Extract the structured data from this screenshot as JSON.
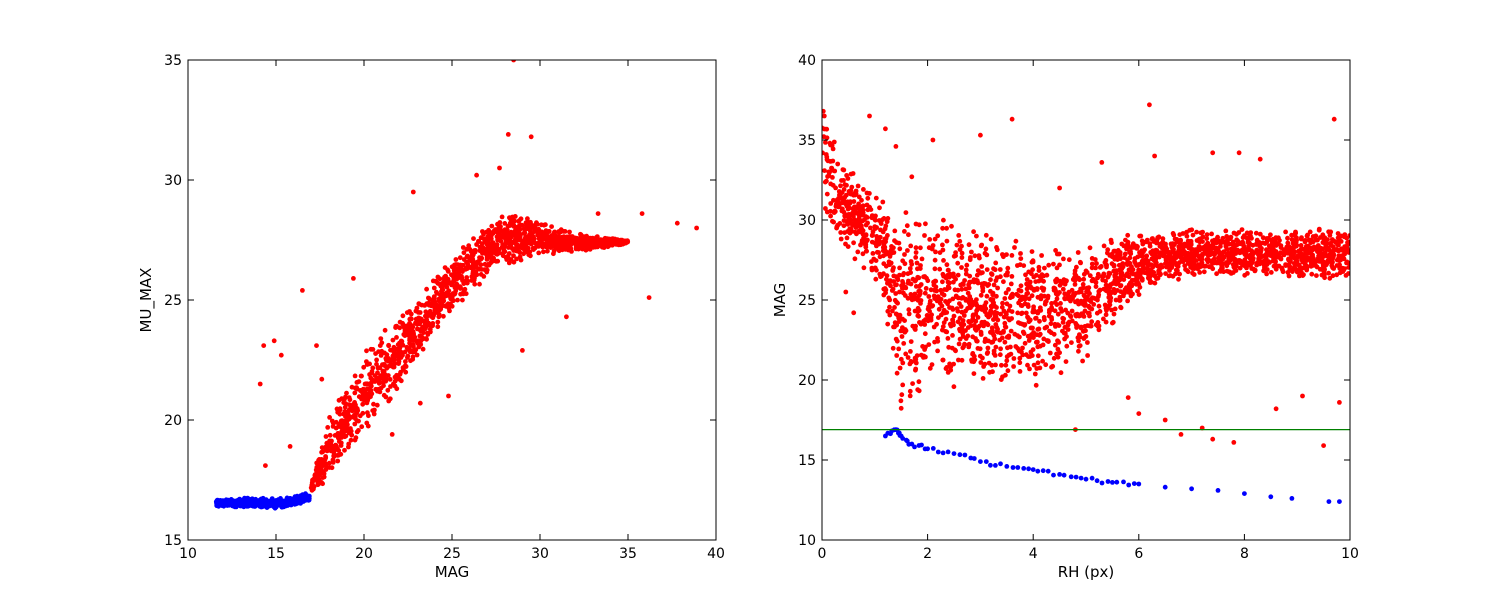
{
  "chart_data": [
    {
      "type": "scatter",
      "xlabel": "MAG",
      "ylabel": "MU_MAX",
      "xlim": [
        10,
        40
      ],
      "ylim": [
        15,
        35
      ],
      "xticks": [
        "10",
        "15",
        "20",
        "25",
        "30",
        "35",
        "40"
      ],
      "yticks": [
        "15",
        "20",
        "25",
        "30",
        "35"
      ],
      "series": [
        {
          "color": "#ff0000",
          "band": [
            [
              17.0,
              16.9,
              17.4
            ],
            [
              18.0,
              17.5,
              20.2
            ],
            [
              19.0,
              18.3,
              21.6
            ],
            [
              20.0,
              19.2,
              22.8
            ],
            [
              21.0,
              20.1,
              23.7
            ],
            [
              22.0,
              21.2,
              24.4
            ],
            [
              23.0,
              22.4,
              25.2
            ],
            [
              24.0,
              23.6,
              26.0
            ],
            [
              25.0,
              24.5,
              26.8
            ],
            [
              26.0,
              25.2,
              27.6
            ],
            [
              27.0,
              25.9,
              28.2
            ],
            [
              28.0,
              26.4,
              28.6
            ],
            [
              29.0,
              26.6,
              28.6
            ],
            [
              30.0,
              26.8,
              28.3
            ],
            [
              31.0,
              26.9,
              28.0
            ],
            [
              32.0,
              27.0,
              27.8
            ],
            [
              33.0,
              27.1,
              27.7
            ],
            [
              34.0,
              27.2,
              27.6
            ],
            [
              35.0,
              27.3,
              27.5
            ]
          ],
          "outliers": [
            [
              14.1,
              21.5
            ],
            [
              14.3,
              23.1
            ],
            [
              14.9,
              23.3
            ],
            [
              15.3,
              22.7
            ],
            [
              16.5,
              25.4
            ],
            [
              15.8,
              18.9
            ],
            [
              14.4,
              18.1
            ],
            [
              17.3,
              23.1
            ],
            [
              17.6,
              21.7
            ],
            [
              19.4,
              25.9
            ],
            [
              21.6,
              19.4
            ],
            [
              22.8,
              29.5
            ],
            [
              28.5,
              35.0
            ],
            [
              28.2,
              31.9
            ],
            [
              29.5,
              31.8
            ],
            [
              33.3,
              28.6
            ],
            [
              35.8,
              28.6
            ],
            [
              36.2,
              25.1
            ],
            [
              37.8,
              28.2
            ],
            [
              38.9,
              28.0
            ],
            [
              29.0,
              22.9
            ],
            [
              24.8,
              21.0
            ],
            [
              23.2,
              20.7
            ],
            [
              31.5,
              24.3
            ],
            [
              26.4,
              30.2
            ],
            [
              27.7,
              30.5
            ]
          ]
        },
        {
          "color": "#0000ff",
          "band": [
            [
              11.6,
              16.4,
              16.7
            ],
            [
              13.0,
              16.35,
              16.75
            ],
            [
              14.0,
              16.35,
              16.75
            ],
            [
              15.0,
              16.3,
              16.75
            ],
            [
              16.0,
              16.4,
              16.8
            ],
            [
              16.9,
              16.6,
              17.0
            ]
          ]
        }
      ]
    },
    {
      "type": "scatter",
      "xlabel": "RH (px)",
      "ylabel": "MAG",
      "xlim": [
        0,
        10
      ],
      "ylim": [
        10,
        40
      ],
      "xticks": [
        "0",
        "2",
        "4",
        "6",
        "8",
        "10"
      ],
      "yticks": [
        "10",
        "15",
        "20",
        "25",
        "30",
        "35",
        "40"
      ],
      "hline": {
        "y": 16.9,
        "color": "#008000"
      },
      "series": [
        {
          "color": "#ff0000",
          "band": [
            [
              0.0,
              30.0,
              38.5
            ],
            [
              0.3,
              28.5,
              34.0
            ],
            [
              0.6,
              27.5,
              33.0
            ],
            [
              0.9,
              26.5,
              32.0
            ],
            [
              1.2,
              24.5,
              31.5
            ],
            [
              1.5,
              17.2,
              31.0
            ],
            [
              2.0,
              20.0,
              30.5
            ],
            [
              2.5,
              19.5,
              30.0
            ],
            [
              3.0,
              19.5,
              29.5
            ],
            [
              3.5,
              19.5,
              29.0
            ],
            [
              4.0,
              19.5,
              28.8
            ],
            [
              4.5,
              20.0,
              28.6
            ],
            [
              5.0,
              21.0,
              28.7
            ],
            [
              5.5,
              23.0,
              29.0
            ],
            [
              6.0,
              25.0,
              29.2
            ],
            [
              6.5,
              26.0,
              29.4
            ],
            [
              7.0,
              26.3,
              29.5
            ],
            [
              7.5,
              26.3,
              29.5
            ],
            [
              8.0,
              26.3,
              29.5
            ],
            [
              8.5,
              26.3,
              29.5
            ],
            [
              9.0,
              26.3,
              29.5
            ],
            [
              9.5,
              26.3,
              29.5
            ],
            [
              10.0,
              26.3,
              29.5
            ]
          ],
          "outliers": [
            [
              0.45,
              25.5
            ],
            [
              0.6,
              24.2
            ],
            [
              1.2,
              35.7
            ],
            [
              1.4,
              34.6
            ],
            [
              2.1,
              35.0
            ],
            [
              3.0,
              35.3
            ],
            [
              3.6,
              36.3
            ],
            [
              6.2,
              37.2
            ],
            [
              9.7,
              36.3
            ],
            [
              7.4,
              34.2
            ],
            [
              7.9,
              34.2
            ],
            [
              8.3,
              33.8
            ],
            [
              6.3,
              34.0
            ],
            [
              5.3,
              33.6
            ],
            [
              4.5,
              32.0
            ],
            [
              1.7,
              32.7
            ],
            [
              0.9,
              36.5
            ],
            [
              5.8,
              18.9
            ],
            [
              6.8,
              16.6
            ],
            [
              7.2,
              17.0
            ],
            [
              7.8,
              16.1
            ],
            [
              4.8,
              16.9
            ],
            [
              6.0,
              17.9
            ],
            [
              8.6,
              18.2
            ],
            [
              9.1,
              19.0
            ],
            [
              9.8,
              18.6
            ],
            [
              9.5,
              15.9
            ],
            [
              7.4,
              16.3
            ],
            [
              6.5,
              17.5
            ]
          ]
        },
        {
          "color": "#0000ff",
          "curve": [
            [
              1.2,
              16.5
            ],
            [
              1.4,
              16.9
            ],
            [
              1.5,
              16.5
            ],
            [
              1.7,
              16.0
            ],
            [
              2.0,
              15.7
            ],
            [
              2.5,
              15.4
            ],
            [
              3.0,
              14.9
            ],
            [
              3.5,
              14.6
            ],
            [
              4.0,
              14.4
            ],
            [
              4.5,
              14.1
            ],
            [
              5.0,
              13.8
            ],
            [
              5.5,
              13.6
            ],
            [
              6.0,
              13.5
            ],
            [
              6.5,
              13.3
            ],
            [
              7.0,
              13.2
            ],
            [
              7.5,
              13.1
            ],
            [
              8.0,
              12.9
            ],
            [
              8.5,
              12.7
            ],
            [
              8.9,
              12.6
            ],
            [
              9.6,
              12.4
            ],
            [
              9.8,
              12.4
            ]
          ]
        }
      ]
    }
  ]
}
